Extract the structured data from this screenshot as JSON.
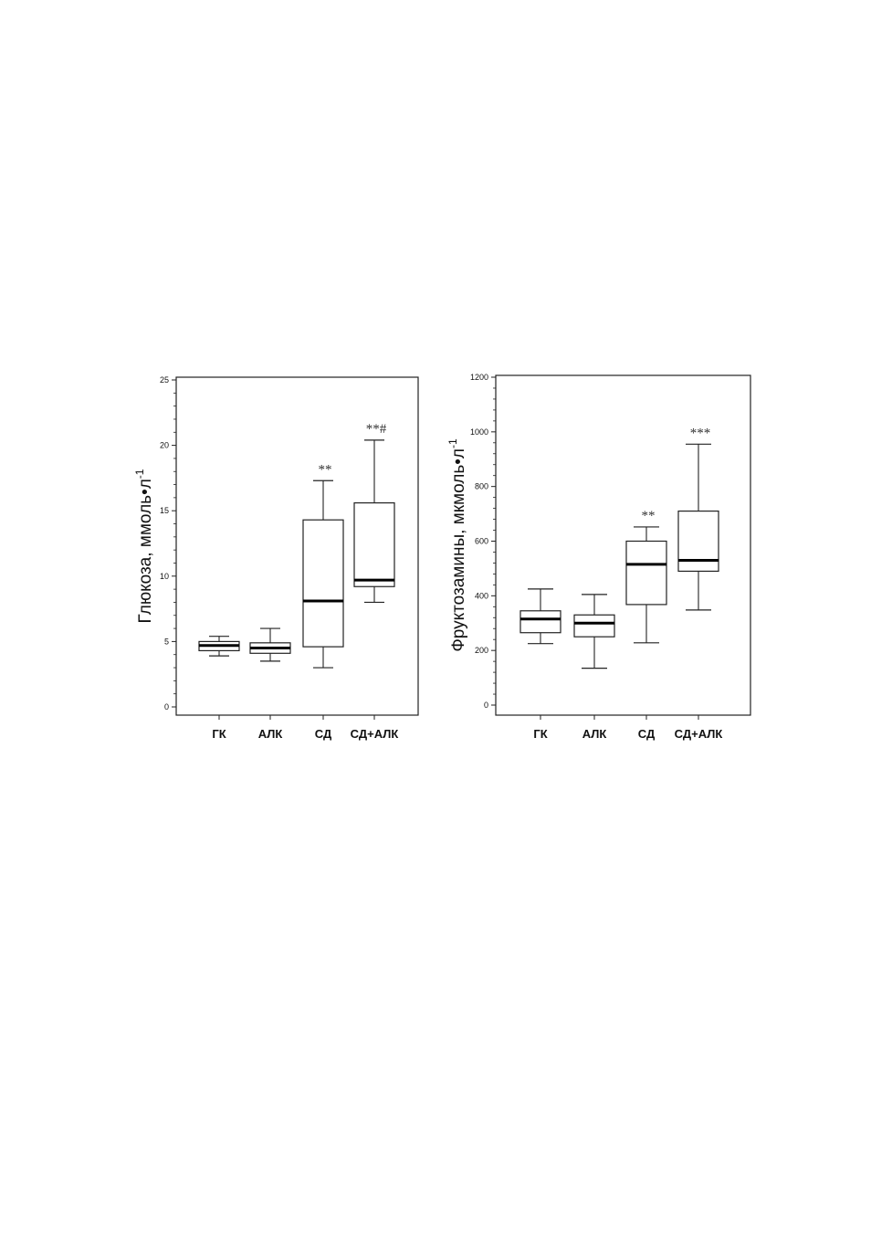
{
  "chart_data": [
    {
      "type": "boxplot",
      "ylabel": "Глюкоза, ммоль•л",
      "ylabel_superscript": "-1",
      "ylim": [
        0,
        25
      ],
      "yticks": [
        0,
        5,
        10,
        15,
        20,
        25
      ],
      "categories": [
        "ГК",
        "АЛК",
        "СД",
        "СД+АЛК"
      ],
      "boxes": [
        {
          "category": "ГК",
          "min": 3.9,
          "q1": 4.3,
          "median": 4.7,
          "q3": 5.0,
          "max": 5.4,
          "annotation": ""
        },
        {
          "category": "АЛК",
          "min": 3.5,
          "q1": 4.1,
          "median": 4.5,
          "q3": 4.9,
          "max": 6.0,
          "annotation": ""
        },
        {
          "category": "СД",
          "min": 3.0,
          "q1": 4.6,
          "median": 8.1,
          "q3": 14.3,
          "max": 17.3,
          "annotation": "**"
        },
        {
          "category": "СД+АЛК",
          "min": 8.0,
          "q1": 9.2,
          "median": 9.7,
          "q3": 15.6,
          "max": 20.4,
          "annotation": "**#"
        }
      ]
    },
    {
      "type": "boxplot",
      "ylabel": "Фруктозамины, мкмоль•л",
      "ylabel_superscript": "-1",
      "ylim": [
        0,
        1200
      ],
      "yticks": [
        0,
        200,
        400,
        600,
        800,
        1000,
        1200
      ],
      "categories": [
        "ГК",
        "АЛК",
        "СД",
        "СД+АЛК"
      ],
      "boxes": [
        {
          "category": "ГК",
          "min": 225,
          "q1": 265,
          "median": 315,
          "q3": 345,
          "max": 425,
          "annotation": ""
        },
        {
          "category": "АЛК",
          "min": 135,
          "q1": 250,
          "median": 300,
          "q3": 330,
          "max": 405,
          "annotation": ""
        },
        {
          "category": "СД",
          "min": 228,
          "q1": 368,
          "median": 515,
          "q3": 600,
          "max": 652,
          "annotation": "**"
        },
        {
          "category": "СД+АЛК",
          "min": 348,
          "q1": 490,
          "median": 530,
          "q3": 710,
          "max": 955,
          "annotation": "***"
        }
      ]
    }
  ]
}
